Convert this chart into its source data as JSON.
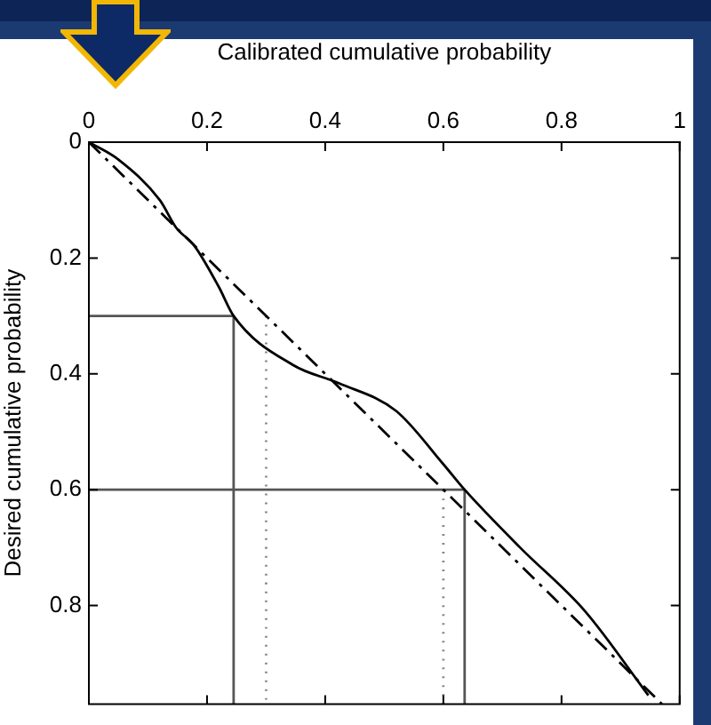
{
  "chart_data": {
    "type": "line",
    "xlabel": "Calibrated cumulative probability",
    "ylabel": "Desired cumulative probability",
    "xlim": [
      0,
      1
    ],
    "xticks": [
      0,
      0.2,
      0.4,
      0.6,
      0.8,
      1
    ],
    "ylim": [
      0.97,
      0
    ],
    "yticks": [
      0,
      0.2,
      0.4,
      0.6,
      0.8
    ],
    "grid": false,
    "legend": false,
    "series": [
      {
        "color": "#000000",
        "line_style": "solid",
        "values": [
          0,
          0.03,
          0.1,
          0.148,
          0.178,
          0.25,
          0.3,
          0.385,
          0.416,
          0.464,
          0.556,
          0.6,
          0.7,
          0.81,
          0.955
        ],
        "x": [
          0,
          0.05,
          0.12,
          0.148,
          0.178,
          0.22,
          0.245,
          0.346,
          0.423,
          0.52,
          0.6,
          0.636,
          0.73,
          0.84,
          0.947
        ]
      },
      {
        "color": "#000000",
        "line_style": "dashed",
        "values": [
          0,
          0.97
        ],
        "x": [
          0,
          0.97
        ]
      },
      {
        "color": "#555555",
        "line_style": "solid",
        "values": [
          0.3,
          0.3,
          0.97
        ],
        "x": [
          0,
          0.245,
          0.245
        ]
      },
      {
        "color": "#555555",
        "line_style": "solid",
        "values": [
          0.6,
          0.6,
          0.97
        ],
        "x": [
          0,
          0.636,
          0.636
        ]
      },
      {
        "color": "#888888",
        "line_style": "dotted",
        "values": [
          0.3,
          0.97
        ],
        "x": [
          0.3,
          0.3
        ]
      },
      {
        "color": "#888888",
        "line_style": "dotted",
        "values": [
          0.6,
          0.97
        ],
        "x": [
          0.6,
          0.6
        ]
      }
    ]
  }
}
